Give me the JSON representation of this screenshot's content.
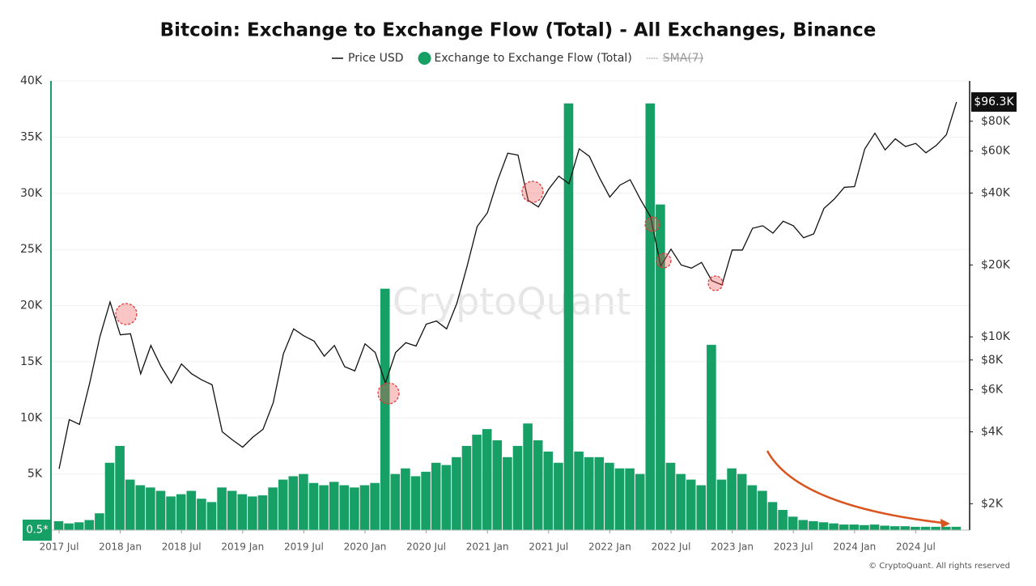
{
  "chart_data": {
    "type": "bar_line_dual_axis",
    "title": "Bitcoin: Exchange to Exchange Flow (Total) - All Exchanges, Binance",
    "x": [
      "2017 Jul",
      "2017 Aug",
      "2017 Sep",
      "2017 Oct",
      "2017 Nov",
      "2017 Dec",
      "2018 Jan",
      "2018 Feb",
      "2018 Mar",
      "2018 Apr",
      "2018 May",
      "2018 Jun",
      "2018 Jul",
      "2018 Aug",
      "2018 Sep",
      "2018 Oct",
      "2018 Nov",
      "2018 Dec",
      "2019 Jan",
      "2019 Feb",
      "2019 Mar",
      "2019 Apr",
      "2019 May",
      "2019 Jun",
      "2019 Jul",
      "2019 Aug",
      "2019 Sep",
      "2019 Oct",
      "2019 Nov",
      "2019 Dec",
      "2020 Jan",
      "2020 Feb",
      "2020 Mar",
      "2020 Apr",
      "2020 May",
      "2020 Jun",
      "2020 Jul",
      "2020 Aug",
      "2020 Sep",
      "2020 Oct",
      "2020 Nov",
      "2020 Dec",
      "2021 Jan",
      "2021 Feb",
      "2021 Mar",
      "2021 Apr",
      "2021 May",
      "2021 Jun",
      "2021 Jul",
      "2021 Aug",
      "2021 Sep",
      "2021 Oct",
      "2021 Nov",
      "2021 Dec",
      "2022 Jan",
      "2022 Feb",
      "2022 Mar",
      "2022 Apr",
      "2022 May",
      "2022 Jun",
      "2022 Jul",
      "2022 Aug",
      "2022 Sep",
      "2022 Oct",
      "2022 Nov",
      "2022 Dec",
      "2023 Jan",
      "2023 Feb",
      "2023 Mar",
      "2023 Apr",
      "2023 May",
      "2023 Jun",
      "2023 Jul",
      "2023 Aug",
      "2023 Sep",
      "2023 Oct",
      "2023 Nov",
      "2023 Dec",
      "2024 Jan",
      "2024 Feb",
      "2024 Mar",
      "2024 Apr",
      "2024 May",
      "2024 Jun",
      "2024 Jul",
      "2024 Aug",
      "2024 Sep",
      "2024 Oct",
      "2024 Nov"
    ],
    "xticks": [
      "2017 Jul",
      "2018 Jan",
      "2018 Jul",
      "2019 Jan",
      "2019 Jul",
      "2020 Jan",
      "2020 Jul",
      "2021 Jan",
      "2021 Jul",
      "2022 Jan",
      "2022 Jul",
      "2023 Jan",
      "2023 Jul",
      "2024 Jan",
      "2024 Jul"
    ],
    "series": [
      {
        "name": "Price USD",
        "color": "#111111",
        "axis": "y2",
        "kind": "line",
        "last_label": "$96.3K",
        "values": [
          2800,
          4500,
          4300,
          6400,
          10000,
          14000,
          10200,
          10300,
          7000,
          9200,
          7500,
          6400,
          7700,
          7000,
          6600,
          6300,
          4000,
          3700,
          3450,
          3800,
          4100,
          5300,
          8500,
          10800,
          10100,
          9600,
          8300,
          9200,
          7500,
          7200,
          9350,
          8600,
          6400,
          8600,
          9450,
          9150,
          11300,
          11650,
          10800,
          13800,
          19700,
          29000,
          33100,
          45200,
          58800,
          57700,
          37300,
          35000,
          41500,
          47100,
          43800,
          61300,
          57000,
          46300,
          38500,
          43200,
          45500,
          37700,
          31800,
          19800,
          23300,
          20000,
          19400,
          20500,
          17200,
          16500,
          23100,
          23100,
          28500,
          29200,
          27200,
          30500,
          29200,
          26000,
          27000,
          34500,
          37700,
          42300,
          42600,
          61200,
          71300,
          60700,
          67500,
          62700,
          64600,
          59000,
          63300,
          70200,
          96300
        ]
      },
      {
        "name": "Exchange to Exchange Flow (Total)",
        "color": "#16a065",
        "axis": "y",
        "kind": "bar",
        "values": [
          800,
          600,
          700,
          900,
          1500,
          6000,
          7500,
          4500,
          4000,
          3800,
          3500,
          3000,
          3200,
          3500,
          2800,
          2500,
          3800,
          3500,
          3200,
          3000,
          3100,
          3800,
          4500,
          4800,
          5000,
          4200,
          4000,
          4300,
          4000,
          3800,
          4000,
          4200,
          21500,
          5000,
          5500,
          4800,
          5200,
          6000,
          5800,
          6500,
          7500,
          8500,
          9000,
          8000,
          6500,
          7500,
          9500,
          8000,
          7000,
          6000,
          38000,
          7000,
          6500,
          6500,
          6000,
          5500,
          5500,
          5000,
          38000,
          29000,
          6000,
          5000,
          4500,
          4000,
          16500,
          4500,
          5500,
          5000,
          4000,
          3500,
          2500,
          1800,
          1200,
          900,
          800,
          700,
          600,
          500,
          500,
          450,
          500,
          400,
          350,
          350,
          300,
          300,
          300,
          300,
          300
        ]
      }
    ],
    "inactive_series": [
      {
        "name": "SMA(7)",
        "color": "#999999"
      }
    ],
    "ylim": [
      0,
      40000
    ],
    "yticks": [
      {
        "value": 5000,
        "label": "5K"
      },
      {
        "value": 10000,
        "label": "10K"
      },
      {
        "value": 15000,
        "label": "15K"
      },
      {
        "value": 20000,
        "label": "20K"
      },
      {
        "value": 25000,
        "label": "25K"
      },
      {
        "value": 30000,
        "label": "30K"
      },
      {
        "value": 35000,
        "label": "35K"
      },
      {
        "value": 40000,
        "label": "40K"
      }
    ],
    "y2lim": [
      1550,
      118000
    ],
    "y2log": true,
    "y2ticks": [
      {
        "value": 2000,
        "label": "$2K"
      },
      {
        "value": 4000,
        "label": "$4K"
      },
      {
        "value": 6000,
        "label": "$6K"
      },
      {
        "value": 8000,
        "label": "$8K"
      },
      {
        "value": 10000,
        "label": "$10K"
      },
      {
        "value": 20000,
        "label": "$20K"
      },
      {
        "value": 40000,
        "label": "$40K"
      },
      {
        "value": 60000,
        "label": "$60K"
      },
      {
        "value": 80000,
        "label": "$80K"
      }
    ],
    "current_flow_label": "0.5*",
    "watermark": "CryptoQuant",
    "footer": "© CryptoQuant. All rights reserved"
  }
}
